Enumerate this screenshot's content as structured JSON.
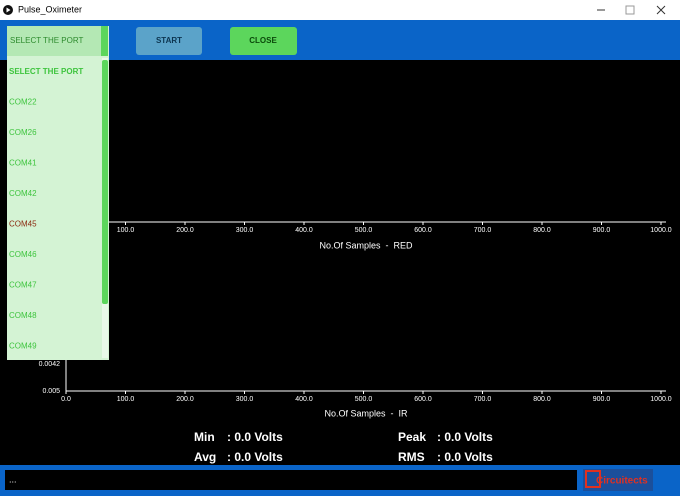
{
  "window": {
    "title": "Pulse_Oximeter"
  },
  "toolbar": {
    "port_select": "SELECT THE PORT",
    "buttons": [
      "START",
      "CLOSE"
    ]
  },
  "port_list": {
    "items": [
      "SELECT THE PORT",
      "COM22",
      "COM26",
      "COM41",
      "COM42",
      "COM45",
      "COM46",
      "COM47",
      "COM48",
      "COM49"
    ]
  },
  "charts": [
    {
      "y_ticks": [],
      "x_ticks": [
        "100.0",
        "200.0",
        "300.0",
        "400.0",
        "500.0",
        "600.0",
        "700.0",
        "800.0",
        "900.0",
        "1000.0"
      ],
      "x_label": "No.Of Samples  -  RED"
    },
    {
      "y_ticks": [
        "0.0042",
        "0.005"
      ],
      "x_ticks": [
        "0.0",
        "100.0",
        "200.0",
        "300.0",
        "400.0",
        "500.0",
        "600.0",
        "700.0",
        "800.0",
        "900.0",
        "1000.0"
      ],
      "x_label": "No.Of Samples  -  IR"
    }
  ],
  "stats": [
    {
      "label": "Min",
      "value": ": 0.0 Volts"
    },
    {
      "label": "Avg",
      "value": ": 0.0 Volts"
    },
    {
      "label": "Peak",
      "value": ": 0.0 Volts"
    },
    {
      "label": "RMS",
      "value": ": 0.0 Volts"
    }
  ],
  "console": {
    "text": "..."
  },
  "logo": {
    "text": "Circuitects"
  }
}
